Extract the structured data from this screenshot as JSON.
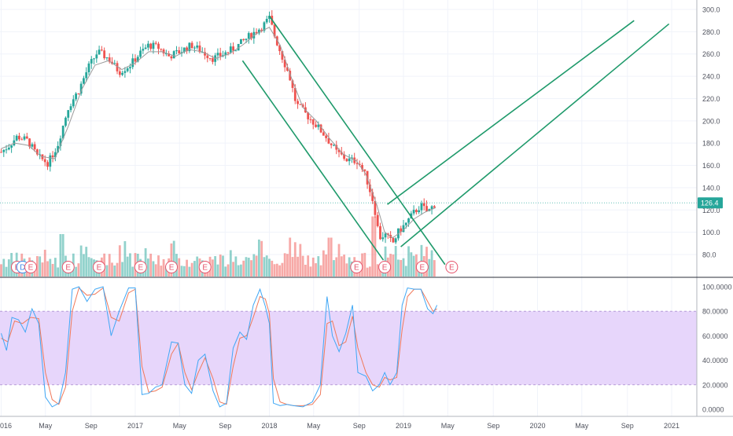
{
  "chart_data": {
    "type": "candlestick",
    "price_axis": {
      "ticks": [
        80.0,
        100.0,
        120.0,
        140.0,
        160.0,
        180.0,
        200.0,
        220.0,
        240.0,
        260.0,
        280.0,
        300.0
      ],
      "labels": [
        "80.0",
        "100.0",
        "120.0",
        "140.0",
        "160.0",
        "180.0",
        "200.0",
        "220.0",
        "240.0",
        "260.0",
        "280.0",
        "300.0"
      ],
      "last_price": 126.4,
      "last_price_label": "126.4"
    },
    "oscillator_axis": {
      "ticks": [
        0,
        20,
        40,
        60,
        80,
        100
      ],
      "labels": [
        "0.0000",
        "20.0000",
        "40.0000",
        "60.0000",
        "80.0000",
        "100.0000"
      ],
      "band": [
        20,
        80
      ]
    },
    "time_axis": {
      "labels": [
        "016",
        "May",
        "Sep",
        "2017",
        "May",
        "Sep",
        "2018",
        "May",
        "Sep",
        "2019",
        "May",
        "Sep",
        "2020",
        "May",
        "Sep",
        "2021"
      ],
      "label_years": [
        2016.0,
        2016.33,
        2016.67,
        2017.0,
        2017.33,
        2017.67,
        2018.0,
        2018.33,
        2018.67,
        2019.0,
        2019.33,
        2019.67,
        2020.0,
        2020.33,
        2020.67,
        2021.0
      ]
    },
    "price_path": [
      [
        2016.0,
        172
      ],
      [
        2016.06,
        178
      ],
      [
        2016.12,
        186
      ],
      [
        2016.2,
        182
      ],
      [
        2016.27,
        168
      ],
      [
        2016.35,
        162
      ],
      [
        2016.42,
        178
      ],
      [
        2016.5,
        212
      ],
      [
        2016.58,
        228
      ],
      [
        2016.65,
        248
      ],
      [
        2016.72,
        262
      ],
      [
        2016.8,
        256
      ],
      [
        2016.88,
        244
      ],
      [
        2016.96,
        250
      ],
      [
        2017.03,
        260
      ],
      [
        2017.1,
        268
      ],
      [
        2017.17,
        266
      ],
      [
        2017.25,
        258
      ],
      [
        2017.33,
        262
      ],
      [
        2017.42,
        268
      ],
      [
        2017.5,
        262
      ],
      [
        2017.58,
        256
      ],
      [
        2017.66,
        260
      ],
      [
        2017.75,
        266
      ],
      [
        2017.85,
        276
      ],
      [
        2017.95,
        285
      ],
      [
        2018.0,
        292
      ],
      [
        2018.04,
        276
      ],
      [
        2018.1,
        256
      ],
      [
        2018.15,
        240
      ],
      [
        2018.2,
        215
      ],
      [
        2018.28,
        205
      ],
      [
        2018.35,
        196
      ],
      [
        2018.42,
        186
      ],
      [
        2018.5,
        172
      ],
      [
        2018.58,
        165
      ],
      [
        2018.66,
        164
      ],
      [
        2018.72,
        150
      ],
      [
        2018.78,
        125
      ],
      [
        2018.82,
        95
      ],
      [
        2018.86,
        98
      ],
      [
        2018.92,
        90
      ],
      [
        2018.96,
        100
      ],
      [
        2019.02,
        108
      ],
      [
        2019.08,
        118
      ],
      [
        2019.13,
        124
      ],
      [
        2019.18,
        118
      ],
      [
        2019.24,
        126.4
      ]
    ],
    "ma_path": [
      [
        2016.0,
        175
      ],
      [
        2016.1,
        180
      ],
      [
        2016.2,
        178
      ],
      [
        2016.3,
        168
      ],
      [
        2016.4,
        166
      ],
      [
        2016.5,
        195
      ],
      [
        2016.6,
        228
      ],
      [
        2016.7,
        250
      ],
      [
        2016.8,
        254
      ],
      [
        2016.9,
        246
      ],
      [
        2017.0,
        252
      ],
      [
        2017.1,
        262
      ],
      [
        2017.2,
        262
      ],
      [
        2017.3,
        258
      ],
      [
        2017.4,
        264
      ],
      [
        2017.5,
        262
      ],
      [
        2017.6,
        256
      ],
      [
        2017.7,
        260
      ],
      [
        2017.8,
        268
      ],
      [
        2017.9,
        278
      ],
      [
        2018.0,
        284
      ],
      [
        2018.08,
        268
      ],
      [
        2018.16,
        240
      ],
      [
        2018.25,
        212
      ],
      [
        2018.35,
        200
      ],
      [
        2018.45,
        184
      ],
      [
        2018.55,
        170
      ],
      [
        2018.65,
        164
      ],
      [
        2018.72,
        152
      ],
      [
        2018.8,
        125
      ],
      [
        2018.86,
        100
      ],
      [
        2018.92,
        95
      ],
      [
        2019.0,
        102
      ],
      [
        2019.08,
        112
      ],
      [
        2019.16,
        118
      ],
      [
        2019.24,
        122
      ]
    ],
    "volume": {
      "peaks": [
        [
          2016.45,
          0.6
        ],
        [
          2016.92,
          0.5
        ],
        [
          2017.08,
          0.4
        ],
        [
          2018.15,
          0.55
        ],
        [
          2018.45,
          0.55
        ],
        [
          2018.78,
          0.85
        ]
      ]
    },
    "markers": [
      {
        "letter": "E",
        "year": 2016.12
      },
      {
        "letter": "D",
        "year": 2016.16
      },
      {
        "letter": "E",
        "year": 2016.22
      },
      {
        "letter": "E",
        "year": 2016.5
      },
      {
        "letter": "E",
        "year": 2016.73
      },
      {
        "letter": "E",
        "year": 2017.04
      },
      {
        "letter": "E",
        "year": 2017.27
      },
      {
        "letter": "E",
        "year": 2017.52
      },
      {
        "letter": "E",
        "year": 2018.65
      },
      {
        "letter": "E",
        "year": 2018.86
      },
      {
        "letter": "E",
        "year": 2019.14
      },
      {
        "letter": "E",
        "year": 2019.36
      }
    ],
    "trendlines": [
      {
        "from": [
          2017.8,
          254
        ],
        "to": [
          2018.85,
          75
        ]
      },
      {
        "from": [
          2018.0,
          294
        ],
        "to": [
          2019.31,
          71
        ]
      },
      {
        "from": [
          2018.88,
          125
        ],
        "to": [
          2020.72,
          290
        ]
      },
      {
        "from": [
          2018.98,
          87
        ],
        "to": [
          2020.98,
          287
        ]
      }
    ],
    "stoch_k": [
      [
        2016.0,
        62
      ],
      [
        2016.04,
        48
      ],
      [
        2016.08,
        75
      ],
      [
        2016.13,
        73
      ],
      [
        2016.18,
        63
      ],
      [
        2016.23,
        82
      ],
      [
        2016.28,
        70
      ],
      [
        2016.33,
        10
      ],
      [
        2016.38,
        2
      ],
      [
        2016.43,
        5
      ],
      [
        2016.48,
        30
      ],
      [
        2016.53,
        98
      ],
      [
        2016.58,
        100
      ],
      [
        2016.64,
        88
      ],
      [
        2016.7,
        98
      ],
      [
        2016.76,
        100
      ],
      [
        2016.82,
        60
      ],
      [
        2016.88,
        80
      ],
      [
        2016.95,
        99
      ],
      [
        2017.0,
        99
      ],
      [
        2017.05,
        12
      ],
      [
        2017.1,
        13
      ],
      [
        2017.15,
        18
      ],
      [
        2017.2,
        20
      ],
      [
        2017.27,
        55
      ],
      [
        2017.32,
        54
      ],
      [
        2017.37,
        20
      ],
      [
        2017.42,
        13
      ],
      [
        2017.47,
        40
      ],
      [
        2017.52,
        45
      ],
      [
        2017.58,
        15
      ],
      [
        2017.63,
        2
      ],
      [
        2017.68,
        5
      ],
      [
        2017.73,
        50
      ],
      [
        2017.78,
        63
      ],
      [
        2017.83,
        57
      ],
      [
        2017.88,
        85
      ],
      [
        2017.93,
        98
      ],
      [
        2017.97,
        84
      ],
      [
        2018.0,
        70
      ],
      [
        2018.03,
        5
      ],
      [
        2018.08,
        3
      ],
      [
        2018.13,
        4
      ],
      [
        2018.18,
        3
      ],
      [
        2018.25,
        2
      ],
      [
        2018.32,
        6
      ],
      [
        2018.38,
        20
      ],
      [
        2018.43,
        92
      ],
      [
        2018.47,
        60
      ],
      [
        2018.52,
        47
      ],
      [
        2018.57,
        62
      ],
      [
        2018.62,
        85
      ],
      [
        2018.66,
        30
      ],
      [
        2018.72,
        27
      ],
      [
        2018.77,
        15
      ],
      [
        2018.82,
        20
      ],
      [
        2018.86,
        30
      ],
      [
        2018.9,
        20
      ],
      [
        2018.95,
        30
      ],
      [
        2018.99,
        85
      ],
      [
        2019.03,
        99
      ],
      [
        2019.08,
        98
      ],
      [
        2019.13,
        98
      ],
      [
        2019.18,
        82
      ],
      [
        2019.22,
        78
      ],
      [
        2019.25,
        85
      ]
    ],
    "stoch_d": [
      [
        2016.0,
        58
      ],
      [
        2016.05,
        55
      ],
      [
        2016.1,
        72
      ],
      [
        2016.16,
        70
      ],
      [
        2016.22,
        75
      ],
      [
        2016.28,
        74
      ],
      [
        2016.33,
        30
      ],
      [
        2016.38,
        8
      ],
      [
        2016.43,
        4
      ],
      [
        2016.48,
        18
      ],
      [
        2016.53,
        80
      ],
      [
        2016.58,
        99
      ],
      [
        2016.64,
        93
      ],
      [
        2016.7,
        94
      ],
      [
        2016.76,
        99
      ],
      [
        2016.82,
        75
      ],
      [
        2016.88,
        72
      ],
      [
        2016.95,
        95
      ],
      [
        2017.0,
        98
      ],
      [
        2017.05,
        35
      ],
      [
        2017.1,
        14
      ],
      [
        2017.15,
        15
      ],
      [
        2017.2,
        18
      ],
      [
        2017.27,
        45
      ],
      [
        2017.32,
        54
      ],
      [
        2017.37,
        30
      ],
      [
        2017.42,
        16
      ],
      [
        2017.47,
        30
      ],
      [
        2017.52,
        42
      ],
      [
        2017.58,
        25
      ],
      [
        2017.63,
        6
      ],
      [
        2017.68,
        4
      ],
      [
        2017.73,
        35
      ],
      [
        2017.78,
        58
      ],
      [
        2017.83,
        60
      ],
      [
        2017.88,
        75
      ],
      [
        2017.93,
        92
      ],
      [
        2017.97,
        90
      ],
      [
        2018.0,
        78
      ],
      [
        2018.03,
        25
      ],
      [
        2018.08,
        6
      ],
      [
        2018.13,
        4
      ],
      [
        2018.18,
        3
      ],
      [
        2018.25,
        3
      ],
      [
        2018.32,
        4
      ],
      [
        2018.38,
        12
      ],
      [
        2018.43,
        70
      ],
      [
        2018.47,
        72
      ],
      [
        2018.52,
        52
      ],
      [
        2018.57,
        55
      ],
      [
        2018.62,
        76
      ],
      [
        2018.66,
        50
      ],
      [
        2018.72,
        30
      ],
      [
        2018.77,
        20
      ],
      [
        2018.82,
        18
      ],
      [
        2018.86,
        26
      ],
      [
        2018.9,
        24
      ],
      [
        2018.95,
        26
      ],
      [
        2018.99,
        65
      ],
      [
        2019.03,
        92
      ],
      [
        2019.08,
        98
      ],
      [
        2019.13,
        98
      ],
      [
        2019.18,
        88
      ],
      [
        2019.22,
        80
      ],
      [
        2019.25,
        82
      ]
    ],
    "colors": {
      "up": "#26a69a",
      "down": "#ef5350",
      "trendline": "#1f9a6b",
      "last_price": "#26a69a",
      "stoch_k": "#3fa7f5",
      "stoch_d": "#f0795a",
      "band_fill": "#e7d6fb",
      "band_line": "#b59ad8",
      "marker_red": "#e5526a",
      "marker_blue": "#3d87e8",
      "ma": "#9a9a9a"
    }
  }
}
